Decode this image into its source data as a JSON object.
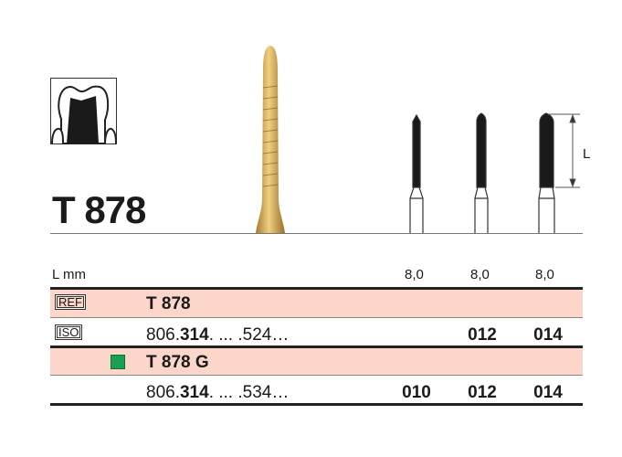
{
  "product": {
    "title": "T 878"
  },
  "icons": {
    "tooth": "crown-preparation-icon",
    "dimension": "length-dimension-icon"
  },
  "dimension_label": "L",
  "table": {
    "length_label": "L mm",
    "lengths": [
      "8,0",
      "8,0",
      "8,0"
    ],
    "ref_badge": "REF",
    "iso_badge": "ISO",
    "groups": [
      {
        "name": "T 878",
        "iso_prefix": "806.",
        "iso_bold": "314",
        "iso_suffix": ". ... .524…",
        "sizes": [
          "",
          "012",
          "014"
        ]
      },
      {
        "name": "T 878 G",
        "marker_color": "#1aa050",
        "iso_prefix": "806.",
        "iso_bold": "314",
        "iso_suffix": ". ... .534…",
        "sizes": [
          "010",
          "012",
          "014"
        ]
      }
    ]
  },
  "colors": {
    "band": "#fcd6c9",
    "gold": "#c9a050",
    "green": "#1aa050"
  }
}
